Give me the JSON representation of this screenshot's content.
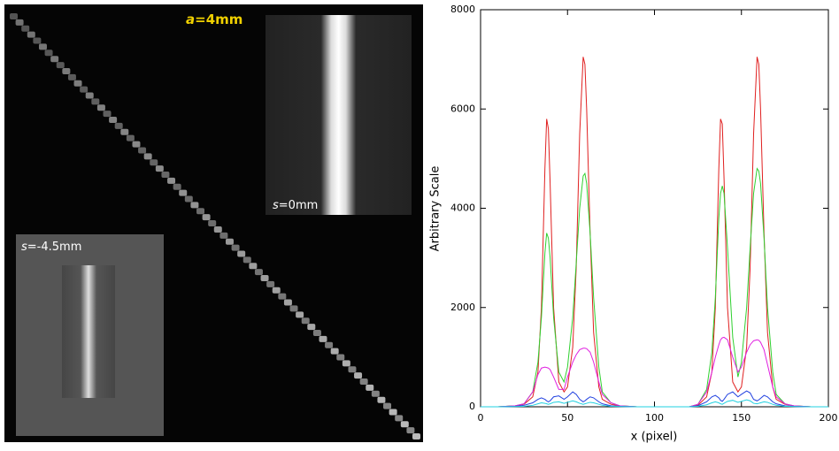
{
  "image_labels": {
    "top_label": {
      "variable": "a",
      "value": "=4mm"
    },
    "inset_top": {
      "variable": "s",
      "value": "=0mm"
    },
    "inset_bottom": {
      "variable": "s",
      "value": "=-4.5mm"
    }
  },
  "chart_data": {
    "type": "line",
    "y_label": "Arbitrary Scale",
    "x_label": "x (pixel)",
    "xlim": [
      0,
      200
    ],
    "xticks": [
      0,
      50,
      100,
      150,
      200
    ],
    "ylim": [
      0,
      8000
    ],
    "yticks": [
      0,
      2000,
      4000,
      6000,
      8000
    ],
    "x": [
      0,
      10,
      20,
      25,
      30,
      33,
      35,
      37,
      38,
      39,
      40,
      42,
      45,
      48,
      50,
      53,
      55,
      57,
      59,
      60,
      61,
      63,
      65,
      68,
      70,
      75,
      80,
      90,
      100,
      110,
      120,
      125,
      130,
      133,
      135,
      137,
      138,
      139,
      140,
      142,
      145,
      148,
      150,
      153,
      155,
      157,
      159,
      160,
      161,
      163,
      165,
      168,
      170,
      175,
      180,
      190,
      200
    ],
    "series": [
      {
        "color": "#e02020",
        "values": [
          0,
          0,
          20,
          50,
          200,
          700,
          2000,
          4800,
          5800,
          5600,
          4500,
          2000,
          500,
          300,
          400,
          1200,
          2800,
          5500,
          7050,
          6900,
          6000,
          3500,
          1500,
          400,
          150,
          50,
          20,
          0,
          0,
          0,
          0,
          30,
          200,
          700,
          2000,
          4800,
          5800,
          5700,
          4600,
          2000,
          500,
          300,
          400,
          1200,
          2800,
          5500,
          7050,
          6900,
          6000,
          3500,
          1500,
          400,
          150,
          50,
          20,
          0,
          0
        ]
      },
      {
        "color": "#30d030",
        "values": [
          0,
          0,
          20,
          60,
          300,
          900,
          1800,
          3100,
          3500,
          3400,
          3000,
          1800,
          700,
          500,
          800,
          1800,
          2900,
          4000,
          4650,
          4700,
          4500,
          3500,
          2200,
          800,
          300,
          80,
          20,
          0,
          0,
          0,
          0,
          50,
          350,
          1100,
          2200,
          3800,
          4300,
          4450,
          4300,
          3200,
          1400,
          600,
          900,
          2000,
          3200,
          4300,
          4800,
          4750,
          4500,
          3400,
          2000,
          700,
          250,
          60,
          20,
          0,
          0
        ]
      },
      {
        "color": "#e020e0",
        "values": [
          0,
          0,
          20,
          60,
          300,
          650,
          780,
          800,
          790,
          780,
          750,
          600,
          350,
          350,
          600,
          900,
          1050,
          1150,
          1180,
          1180,
          1170,
          1100,
          900,
          500,
          250,
          80,
          20,
          0,
          0,
          0,
          0,
          50,
          300,
          700,
          1000,
          1250,
          1350,
          1390,
          1400,
          1350,
          1000,
          700,
          800,
          1100,
          1250,
          1330,
          1350,
          1340,
          1300,
          1150,
          850,
          400,
          200,
          60,
          20,
          0,
          0
        ]
      },
      {
        "color": "#2040e0",
        "values": [
          0,
          0,
          10,
          30,
          80,
          150,
          180,
          150,
          120,
          100,
          120,
          200,
          220,
          150,
          200,
          300,
          250,
          150,
          100,
          120,
          150,
          200,
          180,
          100,
          60,
          20,
          10,
          0,
          0,
          0,
          0,
          20,
          100,
          200,
          230,
          180,
          130,
          110,
          150,
          250,
          300,
          200,
          250,
          320,
          280,
          150,
          120,
          140,
          170,
          230,
          200,
          100,
          60,
          20,
          10,
          0,
          0
        ]
      },
      {
        "color": "#20d0e0",
        "values": [
          0,
          0,
          5,
          10,
          30,
          60,
          80,
          70,
          60,
          50,
          60,
          90,
          100,
          70,
          90,
          120,
          100,
          70,
          50,
          60,
          70,
          90,
          80,
          50,
          30,
          10,
          5,
          0,
          0,
          0,
          0,
          10,
          40,
          80,
          100,
          80,
          60,
          50,
          70,
          110,
          130,
          90,
          110,
          140,
          120,
          70,
          60,
          70,
          80,
          100,
          90,
          50,
          30,
          10,
          5,
          0,
          0
        ]
      }
    ]
  }
}
